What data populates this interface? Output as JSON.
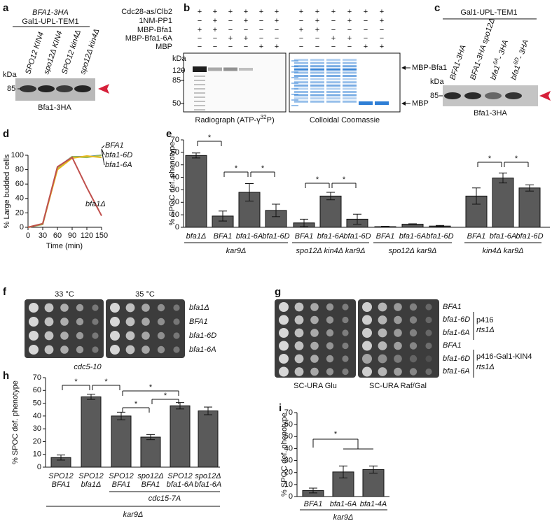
{
  "blot_a": {
    "panel": "a",
    "header": [
      "BFA1-3HA",
      "Gal1-UPL-TEM1"
    ],
    "lanes": [
      "SPO12 KIN4",
      "spo12Δ KIN4",
      "SPO12 kin4Δ",
      "spo12Δ kin4Δ"
    ],
    "kda": "kDa",
    "markers": [
      "85"
    ],
    "caption": "Bfa1-3HA"
  },
  "kinase_b": {
    "panel": "b",
    "rows": [
      {
        "label": "Cdc28-as/Clb2",
        "signs": [
          "+",
          "+",
          "+",
          "+",
          "+",
          "+",
          "+",
          "+",
          "+",
          "+",
          "+",
          "+"
        ]
      },
      {
        "label": "1NM-PP1",
        "signs": [
          "−",
          "+",
          "−",
          "+",
          "−",
          "+",
          "−",
          "+",
          "−",
          "+",
          "−",
          "+"
        ]
      },
      {
        "label": "MBP-Bfa1",
        "signs": [
          "+",
          "+",
          "−",
          "−",
          "−",
          "−",
          "+",
          "+",
          "−",
          "−",
          "−",
          "−"
        ]
      },
      {
        "label": "MBP-Bfa1-6A",
        "signs": [
          "−",
          "−",
          "+",
          "+",
          "−",
          "−",
          "−",
          "−",
          "+",
          "+",
          "−",
          "−"
        ]
      },
      {
        "label": "MBP",
        "signs": [
          "−",
          "−",
          "−",
          "−",
          "+",
          "+",
          "−",
          "−",
          "−",
          "−",
          "+",
          "+"
        ]
      }
    ],
    "kda": "kDa",
    "markers": [
      "120",
      "85",
      "50"
    ],
    "captions": [
      {
        "text": "Radiograph (ATP-γ",
        "sup": "32",
        "tail": "P)"
      },
      "Colloidal Coomassie"
    ],
    "band_labels": [
      "MBP-Bfa1",
      "MBP"
    ]
  },
  "blot_c": {
    "panel": "c",
    "header": "Gal1-UPL-TEM1",
    "lanes": [
      "BFA1-3HA",
      "BFA1-3HA spo12Δ",
      {
        "text": "bfa1",
        "sup": "6A",
        "tail": "- 3HA"
      },
      {
        "text": "bfa1",
        "sup": "6D",
        "tail": "- 3HA"
      }
    ],
    "kda": "kDa",
    "markers": [
      "85"
    ],
    "caption": "Bfa1-3HA"
  },
  "spots_f": {
    "panel": "f",
    "columns": [
      "33 °C",
      "35 °C"
    ],
    "rows": [
      "bfa1Δ",
      "BFA1",
      "bfa1-6D",
      "bfa1-6A"
    ],
    "caption": "cdc5-10"
  },
  "spots_g": {
    "panel": "g",
    "rows": [
      "BFA1",
      "bfa1-6D",
      "bfa1-6A",
      "BFA1",
      "bfa1-6D",
      "bfa1-6A"
    ],
    "plasmids": [
      [
        "p416",
        "rts1Δ"
      ],
      [
        "p416-Gal1-KIN4",
        "rts1Δ"
      ]
    ],
    "captions": [
      "SC-URA Glu",
      "SC-URA Raf/Gal"
    ]
  },
  "chart_data": [
    {
      "type": "line",
      "panel": "d",
      "ylabel": "% Large budded cells",
      "xlabel": "Time (min)",
      "x": [
        0,
        30,
        60,
        90,
        120,
        150
      ],
      "xlim": [
        0,
        150
      ],
      "xticks": [
        0,
        30,
        60,
        90,
        120,
        150
      ],
      "ylim": [
        0,
        100
      ],
      "yticks": [
        0,
        20,
        40,
        60,
        80,
        100
      ],
      "series": [
        {
          "name": "BFA1",
          "color": "#4a7ebb",
          "values": [
            0,
            5,
            83,
            98,
            98,
            100
          ]
        },
        {
          "name": "bfa1-6D",
          "color": "#9bbb59",
          "values": [
            0,
            4,
            82,
            98,
            97,
            100
          ]
        },
        {
          "name": "bfa1-6A",
          "color": "#e6b91e",
          "values": [
            0,
            5,
            80,
            96,
            99,
            97
          ]
        },
        {
          "name": "bfa1Δ",
          "color": "#c0504d",
          "values": [
            0,
            5,
            84,
            97,
            55,
            16
          ]
        }
      ]
    },
    {
      "type": "bar",
      "panel": "e",
      "ylabel": "% SPOC def. phenotype",
      "ylim": [
        0,
        70
      ],
      "yticks": [
        0,
        10,
        20,
        30,
        40,
        50,
        60,
        70
      ],
      "color": "#5a5a5a",
      "groups": [
        {
          "name": "kar9Δ",
          "categories": [
            "bfa1Δ",
            "BFA1",
            "bfa1-6A",
            "bfa1-6D"
          ],
          "values": [
            57.5,
            9,
            28,
            13.5
          ],
          "errors": [
            2,
            4,
            7,
            5
          ]
        },
        {
          "name": "spo12Δ kin4Δ kar9Δ",
          "categories": [
            "BFA1",
            "bfa1-6A",
            "bfa1-6D"
          ],
          "values": [
            3.5,
            25,
            6.5
          ],
          "errors": [
            3,
            3,
            4
          ]
        },
        {
          "name": "spo12Δ kar9Δ",
          "categories": [
            "BFA1",
            "bfa1-6A",
            "bfa1-6D"
          ],
          "values": [
            0.5,
            2.5,
            1
          ],
          "errors": [
            0.3,
            0.3,
            0.5
          ]
        },
        {
          "name": "kin4Δ kar9Δ",
          "categories": [
            "BFA1",
            "bfa1-6A",
            "bfa1-6D"
          ],
          "values": [
            25,
            39.5,
            31.5
          ],
          "errors": [
            6.5,
            4,
            2.5
          ]
        }
      ],
      "annotations": [
        "*",
        "*",
        "*",
        "*",
        "*",
        "*",
        "*"
      ]
    },
    {
      "type": "bar",
      "panel": "h",
      "ylabel": "% SPOC def. phenotype",
      "ylim": [
        0,
        70
      ],
      "yticks": [
        0,
        10,
        20,
        30,
        40,
        50,
        60,
        70
      ],
      "color": "#5a5a5a",
      "categories": [
        [
          "SPO12",
          "BFA1"
        ],
        [
          "SPO12",
          "bfa1Δ"
        ],
        [
          "SPO12",
          "BFA1"
        ],
        [
          "spo12Δ",
          "BFA1"
        ],
        [
          "SPO12",
          "bfa1-6A"
        ],
        [
          "spo12Δ",
          "bfa1-6A"
        ]
      ],
      "values": [
        7.5,
        55,
        40,
        23.5,
        48,
        44
      ],
      "errors": [
        2,
        2,
        3,
        2,
        2.5,
        3
      ],
      "group_labels": [
        "cdc15-7A",
        "kar9Δ"
      ],
      "annotations": [
        "*",
        "*",
        "*",
        "*",
        "*"
      ]
    },
    {
      "type": "bar",
      "panel": "i",
      "ylabel": "% SPOC def. phenotype",
      "ylim": [
        0,
        70
      ],
      "yticks": [
        0,
        10,
        20,
        30,
        40,
        50,
        60,
        70
      ],
      "color": "#5a5a5a",
      "categories": [
        "BFA1",
        "bfa1-6A",
        "bfa1-4A"
      ],
      "values": [
        5,
        20.5,
        22.5
      ],
      "errors": [
        2,
        5,
        3
      ],
      "group_labels": [
        "kar9Δ"
      ],
      "annotations": [
        "*"
      ]
    }
  ]
}
